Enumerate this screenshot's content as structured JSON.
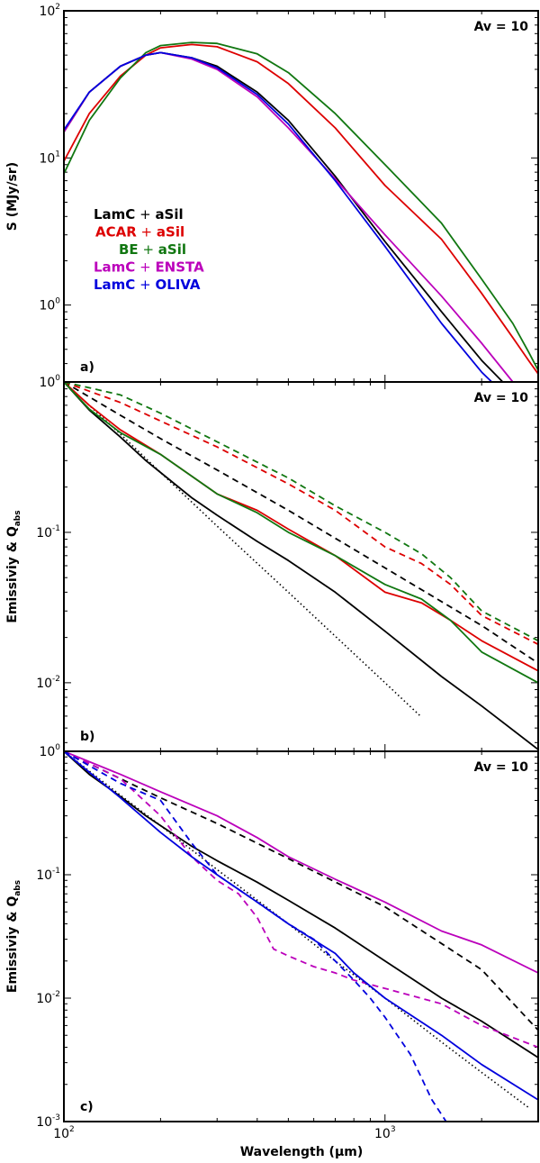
{
  "figure": {
    "x_label": "Wavelength (µm)",
    "x_range": [
      100,
      3000
    ],
    "x_ticks": [
      {
        "value": 100,
        "mant": "10",
        "exp": "2"
      },
      {
        "value": 1000,
        "mant": "10",
        "exp": "3"
      }
    ]
  },
  "colors": {
    "LamC_aSil": "#000000",
    "ACAR_aSil": "#dd0000",
    "BE_aSil": "#117711",
    "LamC_ENSTA": "#bb00bb",
    "LamC_OLIVA": "#0000dd"
  },
  "chart_data": [
    {
      "type": "line",
      "panel": "a",
      "panel_label": "a)",
      "annotation": "Av = 10",
      "ylabel": "S (MJy/sr)",
      "xlabel": "",
      "xscale": "log",
      "yscale": "log",
      "xlim": [
        100,
        3000
      ],
      "ylim": [
        0.3,
        100
      ],
      "y_ticks": [
        {
          "value": 1,
          "mant": "10",
          "exp": "0"
        },
        {
          "value": 10,
          "mant": "10",
          "exp": "1"
        },
        {
          "value": 100,
          "mant": "10",
          "exp": "2"
        }
      ],
      "legend": [
        {
          "prefix": "LamC",
          "suffix": "aSil",
          "color_key": "LamC_aSil",
          "dx": 0
        },
        {
          "prefix": "ACAR",
          "suffix": "aSil",
          "color_key": "ACAR_aSil",
          "dx": 2
        },
        {
          "prefix": "BE",
          "suffix": "aSil",
          "color_key": "BE_aSil",
          "dx": 28
        },
        {
          "prefix": "LamC",
          "suffix": "ENSTA",
          "color_key": "LamC_ENSTA",
          "dx": 0
        },
        {
          "prefix": "LamC",
          "suffix": "OLIVA",
          "color_key": "LamC_OLIVA",
          "dx": 0
        }
      ],
      "series": [
        {
          "name": "LamC + aSil",
          "color_key": "LamC_aSil",
          "dash": "solid",
          "x": [
            100,
            120,
            150,
            180,
            200,
            250,
            300,
            400,
            500,
            700,
            1000,
            1500,
            2000,
            2400
          ],
          "y": [
            15,
            28,
            42,
            50,
            52,
            48,
            42,
            28,
            18,
            7.5,
            2.7,
            0.9,
            0.42,
            0.28
          ]
        },
        {
          "name": "ACAR + aSil",
          "color_key": "ACAR_aSil",
          "dash": "solid",
          "x": [
            100,
            120,
            150,
            180,
            200,
            250,
            300,
            400,
            500,
            700,
            1000,
            1500,
            2000,
            2500,
            2800,
            3000
          ],
          "y": [
            9.5,
            20,
            36,
            50,
            56,
            59,
            57,
            45,
            32,
            16,
            6.5,
            2.8,
            1.2,
            0.6,
            0.42,
            0.34
          ]
        },
        {
          "name": "BE + aSil",
          "color_key": "BE_aSil",
          "dash": "solid",
          "x": [
            100,
            120,
            150,
            180,
            200,
            250,
            300,
            400,
            500,
            700,
            1000,
            1500,
            2000,
            2500,
            2800,
            3000
          ],
          "y": [
            7.8,
            18,
            35,
            52,
            58,
            61,
            60,
            51,
            38,
            20,
            9,
            3.6,
            1.5,
            0.75,
            0.48,
            0.36
          ]
        },
        {
          "name": "LamC + ENSTA",
          "color_key": "LamC_ENSTA",
          "dash": "solid",
          "x": [
            100,
            120,
            150,
            180,
            200,
            250,
            300,
            400,
            500,
            700,
            1000,
            1500,
            2000,
            2500
          ],
          "y": [
            15,
            28,
            42,
            50,
            52,
            47,
            40,
            26,
            16,
            7.2,
            3,
            1.15,
            0.55,
            0.3
          ]
        },
        {
          "name": "LamC + OLIVA",
          "color_key": "LamC_OLIVA",
          "dash": "solid",
          "x": [
            100,
            120,
            150,
            180,
            200,
            250,
            300,
            400,
            500,
            700,
            1000,
            1500,
            2000,
            2300
          ],
          "y": [
            15.5,
            28,
            42,
            50,
            52,
            48,
            41,
            27,
            17,
            7,
            2.5,
            0.75,
            0.35,
            0.26
          ]
        }
      ]
    },
    {
      "type": "line",
      "panel": "b",
      "panel_label": "b)",
      "annotation": "Av = 10",
      "ylabel": "Emissiviy & Q",
      "ylabel_sub": "abs",
      "xlabel": "",
      "xscale": "log",
      "yscale": "log",
      "xlim": [
        100,
        3000
      ],
      "ylim": [
        0.0035,
        1
      ],
      "y_ticks": [
        {
          "value": 0.01,
          "mant": "10",
          "exp": "-2"
        },
        {
          "value": 0.1,
          "mant": "10",
          "exp": "-1"
        },
        {
          "value": 1,
          "mant": "10",
          "exp": "0"
        }
      ],
      "series": [
        {
          "name": "LamC + aSil emissivity",
          "color_key": "LamC_aSil",
          "dash": "solid",
          "x": [
            100,
            120,
            150,
            180,
            200,
            250,
            300,
            400,
            500,
            700,
            1000,
            1500,
            2000,
            3000
          ],
          "y": [
            1,
            0.65,
            0.43,
            0.3,
            0.25,
            0.17,
            0.13,
            0.087,
            0.065,
            0.04,
            0.022,
            0.011,
            0.007,
            0.0036
          ]
        },
        {
          "name": "LamC + aSil Q_abs",
          "color_key": "LamC_aSil",
          "dash": "dashed",
          "x": [
            100,
            150,
            200,
            300,
            500,
            1000,
            2000,
            3000
          ],
          "y": [
            1,
            0.6,
            0.42,
            0.26,
            0.14,
            0.058,
            0.024,
            0.0135
          ]
        },
        {
          "name": "beta = 2 reference",
          "color_key": "LamC_aSil",
          "dash": "dotted",
          "x": [
            100,
            150,
            200,
            300,
            500,
            700,
            1000,
            1300
          ],
          "y": [
            1,
            0.45,
            0.25,
            0.11,
            0.04,
            0.0204,
            0.01,
            0.0059
          ]
        },
        {
          "name": "ACAR + aSil emissivity",
          "color_key": "ACAR_aSil",
          "dash": "solid",
          "x": [
            100,
            120,
            150,
            200,
            300,
            400,
            500,
            700,
            1000,
            1300,
            1600,
            2000,
            3000
          ],
          "y": [
            1,
            0.7,
            0.48,
            0.33,
            0.18,
            0.14,
            0.105,
            0.07,
            0.04,
            0.034,
            0.026,
            0.019,
            0.012
          ]
        },
        {
          "name": "ACAR + aSil Q_abs",
          "color_key": "ACAR_aSil",
          "dash": "dashed",
          "x": [
            100,
            150,
            200,
            300,
            500,
            700,
            1000,
            1300,
            1600,
            2000,
            3000
          ],
          "y": [
            1,
            0.73,
            0.55,
            0.37,
            0.21,
            0.14,
            0.08,
            0.062,
            0.045,
            0.028,
            0.018
          ]
        },
        {
          "name": "BE + aSil emissivity",
          "color_key": "BE_aSil",
          "dash": "solid",
          "x": [
            100,
            120,
            150,
            200,
            300,
            400,
            500,
            700,
            1000,
            1300,
            1600,
            2000,
            3000
          ],
          "y": [
            1,
            0.66,
            0.46,
            0.33,
            0.18,
            0.135,
            0.1,
            0.07,
            0.045,
            0.036,
            0.026,
            0.016,
            0.01
          ]
        },
        {
          "name": "BE + aSil Q_abs",
          "color_key": "BE_aSil",
          "dash": "dashed",
          "x": [
            100,
            150,
            200,
            300,
            500,
            700,
            1000,
            1300,
            1600,
            2000,
            3000
          ],
          "y": [
            1,
            0.82,
            0.62,
            0.4,
            0.23,
            0.15,
            0.1,
            0.072,
            0.05,
            0.03,
            0.019
          ]
        }
      ]
    },
    {
      "type": "line",
      "panel": "c",
      "panel_label": "c)",
      "annotation": "Av = 10",
      "ylabel": "Emissiviy & Q",
      "ylabel_sub": "abs",
      "xlabel": "Wavelength (µm)",
      "xscale": "log",
      "yscale": "log",
      "xlim": [
        100,
        3000
      ],
      "ylim": [
        0.001,
        1
      ],
      "y_ticks": [
        {
          "value": 0.001,
          "mant": "10",
          "exp": "-3"
        },
        {
          "value": 0.01,
          "mant": "10",
          "exp": "-2"
        },
        {
          "value": 0.1,
          "mant": "10",
          "exp": "-1"
        },
        {
          "value": 1,
          "mant": "10",
          "exp": "0"
        }
      ],
      "series": [
        {
          "name": "LamC + aSil emissivity",
          "color_key": "LamC_aSil",
          "dash": "solid",
          "x": [
            100,
            120,
            150,
            180,
            200,
            250,
            300,
            400,
            500,
            700,
            1000,
            1500,
            2000,
            3000
          ],
          "y": [
            1,
            0.65,
            0.43,
            0.3,
            0.25,
            0.17,
            0.13,
            0.087,
            0.062,
            0.037,
            0.02,
            0.01,
            0.0065,
            0.0033
          ]
        },
        {
          "name": "LamC + aSil Q_abs",
          "color_key": "LamC_aSil",
          "dash": "dashed",
          "x": [
            100,
            150,
            200,
            300,
            500,
            1000,
            2000,
            3000
          ],
          "y": [
            1,
            0.6,
            0.42,
            0.26,
            0.135,
            0.055,
            0.017,
            0.0055
          ]
        },
        {
          "name": "beta = 2 reference",
          "color_key": "LamC_aSil",
          "dash": "dotted",
          "x": [
            100,
            150,
            200,
            300,
            500,
            700,
            1000,
            1500,
            2000,
            2800
          ],
          "y": [
            1,
            0.44,
            0.25,
            0.11,
            0.04,
            0.02,
            0.01,
            0.0044,
            0.0025,
            0.0013
          ]
        },
        {
          "name": "LamC + ENSTA emissivity",
          "color_key": "LamC_ENSTA",
          "dash": "solid",
          "x": [
            100,
            150,
            200,
            300,
            400,
            500,
            700,
            1000,
            1500,
            2000,
            3000
          ],
          "y": [
            1,
            0.65,
            0.47,
            0.3,
            0.2,
            0.14,
            0.092,
            0.06,
            0.035,
            0.027,
            0.016
          ]
        },
        {
          "name": "LamC + ENSTA Q_abs",
          "color_key": "LamC_ENSTA",
          "dash": "dashed",
          "x": [
            100,
            150,
            200,
            250,
            300,
            350,
            400,
            450,
            500,
            600,
            700,
            800,
            1000,
            1500,
            2000,
            3000
          ],
          "y": [
            1,
            0.6,
            0.3,
            0.14,
            0.09,
            0.07,
            0.045,
            0.025,
            0.022,
            0.018,
            0.016,
            0.014,
            0.012,
            0.009,
            0.006,
            0.004
          ]
        },
        {
          "name": "LamC + OLIVA emissivity",
          "color_key": "LamC_OLIVA",
          "dash": "solid",
          "x": [
            100,
            150,
            200,
            250,
            300,
            400,
            500,
            700,
            800,
            1000,
            1500,
            2000,
            3000
          ],
          "y": [
            1,
            0.42,
            0.22,
            0.14,
            0.1,
            0.06,
            0.04,
            0.023,
            0.016,
            0.01,
            0.005,
            0.0029,
            0.0015
          ]
        },
        {
          "name": "LamC + OLIVA Q_abs",
          "color_key": "LamC_OLIVA",
          "dash": "dashed",
          "x": [
            100,
            150,
            200,
            250,
            300,
            400,
            500,
            600,
            700,
            800,
            900,
            1000,
            1200,
            1400,
            1550
          ],
          "y": [
            1,
            0.55,
            0.4,
            0.18,
            0.1,
            0.06,
            0.04,
            0.03,
            0.02,
            0.014,
            0.01,
            0.007,
            0.0035,
            0.0015,
            0.001
          ]
        }
      ]
    }
  ]
}
